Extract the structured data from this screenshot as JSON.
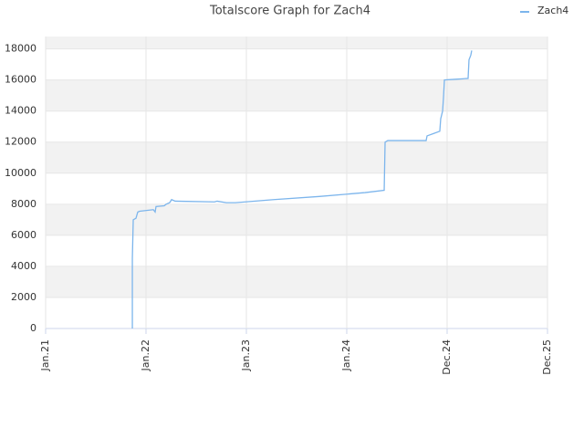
{
  "chart_data": {
    "type": "line",
    "title": "Totalscore Graph for Zach4",
    "x": [
      0.864,
      0.864,
      0.873,
      0.9,
      0.918,
      0.936,
      1.073,
      1.091,
      1.1,
      1.182,
      1.2,
      1.236,
      1.255,
      1.291,
      1.682,
      1.709,
      1.8,
      1.891,
      2.273,
      2.727,
      3.182,
      3.373,
      3.382,
      3.409,
      3.791,
      3.8,
      3.864,
      3.927,
      3.936,
      3.955,
      3.964,
      3.973,
      4.091,
      4.209,
      4.218,
      4.236,
      4.245
    ],
    "series": [
      {
        "name": "Zach4",
        "color": "#7cb5ec",
        "values": [
          0,
          4500,
          7000,
          7100,
          7500,
          7550,
          7650,
          7500,
          7850,
          7900,
          8000,
          8100,
          8300,
          8200,
          8150,
          8200,
          8100,
          8100,
          8300,
          8500,
          8750,
          8900,
          12000,
          12100,
          12100,
          12400,
          12550,
          12700,
          13500,
          14000,
          14900,
          16000,
          16050,
          16100,
          17300,
          17600,
          17900
        ]
      }
    ],
    "xlim": [
      0,
      5
    ],
    "xticks": [
      {
        "value": 0,
        "label": "Jan.21"
      },
      {
        "value": 1,
        "label": "Jan.22"
      },
      {
        "value": 2,
        "label": "Jan.23"
      },
      {
        "value": 3,
        "label": "Jan.24"
      },
      {
        "value": 4,
        "label": "Dec.24"
      },
      {
        "value": 5,
        "label": "Dec.25"
      }
    ],
    "ylim": [
      0,
      18800
    ],
    "yticks": [
      0,
      2000,
      4000,
      6000,
      8000,
      10000,
      12000,
      14000,
      16000,
      18000
    ],
    "grid": true,
    "legend": "top-right"
  }
}
